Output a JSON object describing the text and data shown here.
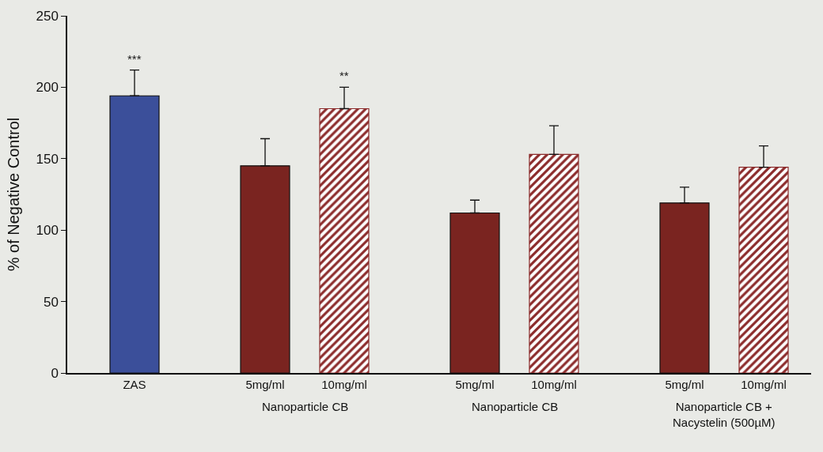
{
  "chart_data": {
    "type": "bar",
    "ylabel": "% of Negative Control",
    "categories": [
      "ZAS",
      "5mg/ml",
      "10mg/ml",
      "5mg/ml",
      "10mg/ml",
      "5mg/ml",
      "10mg/ml"
    ],
    "series": [
      {
        "color": "#7a2420",
        "colors": [
          "#3b4f9a",
          "#7a2420",
          null,
          "#7a2420",
          null,
          "#7a2420",
          null
        ],
        "values": [
          194,
          145,
          null,
          112,
          null,
          119,
          null
        ],
        "errors": [
          [
            194,
            212
          ],
          [
            145,
            164
          ],
          null,
          [
            112,
            121
          ],
          null,
          [
            119,
            130
          ],
          null
        ],
        "value_labels": [
          "***",
          null,
          null,
          null,
          null,
          null,
          null
        ]
      },
      {
        "color": "#8b2a2a",
        "values": [
          null,
          null,
          185,
          null,
          153,
          null,
          144
        ],
        "errors": [
          null,
          null,
          [
            185,
            200
          ],
          null,
          [
            153,
            173
          ],
          null,
          [
            144,
            159
          ]
        ],
        "value_labels": [
          null,
          null,
          "**",
          null,
          null,
          null,
          null
        ]
      }
    ],
    "annotations": [
      "Nanoparticle CB",
      "Nanoparticle CB",
      "Nanoparticle CB +\nNacystelin (500µM)"
    ],
    "ylim": [
      0,
      250
    ],
    "yticks": [
      0,
      50,
      100,
      150,
      200,
      250
    ],
    "grid": false,
    "legend": false
  }
}
